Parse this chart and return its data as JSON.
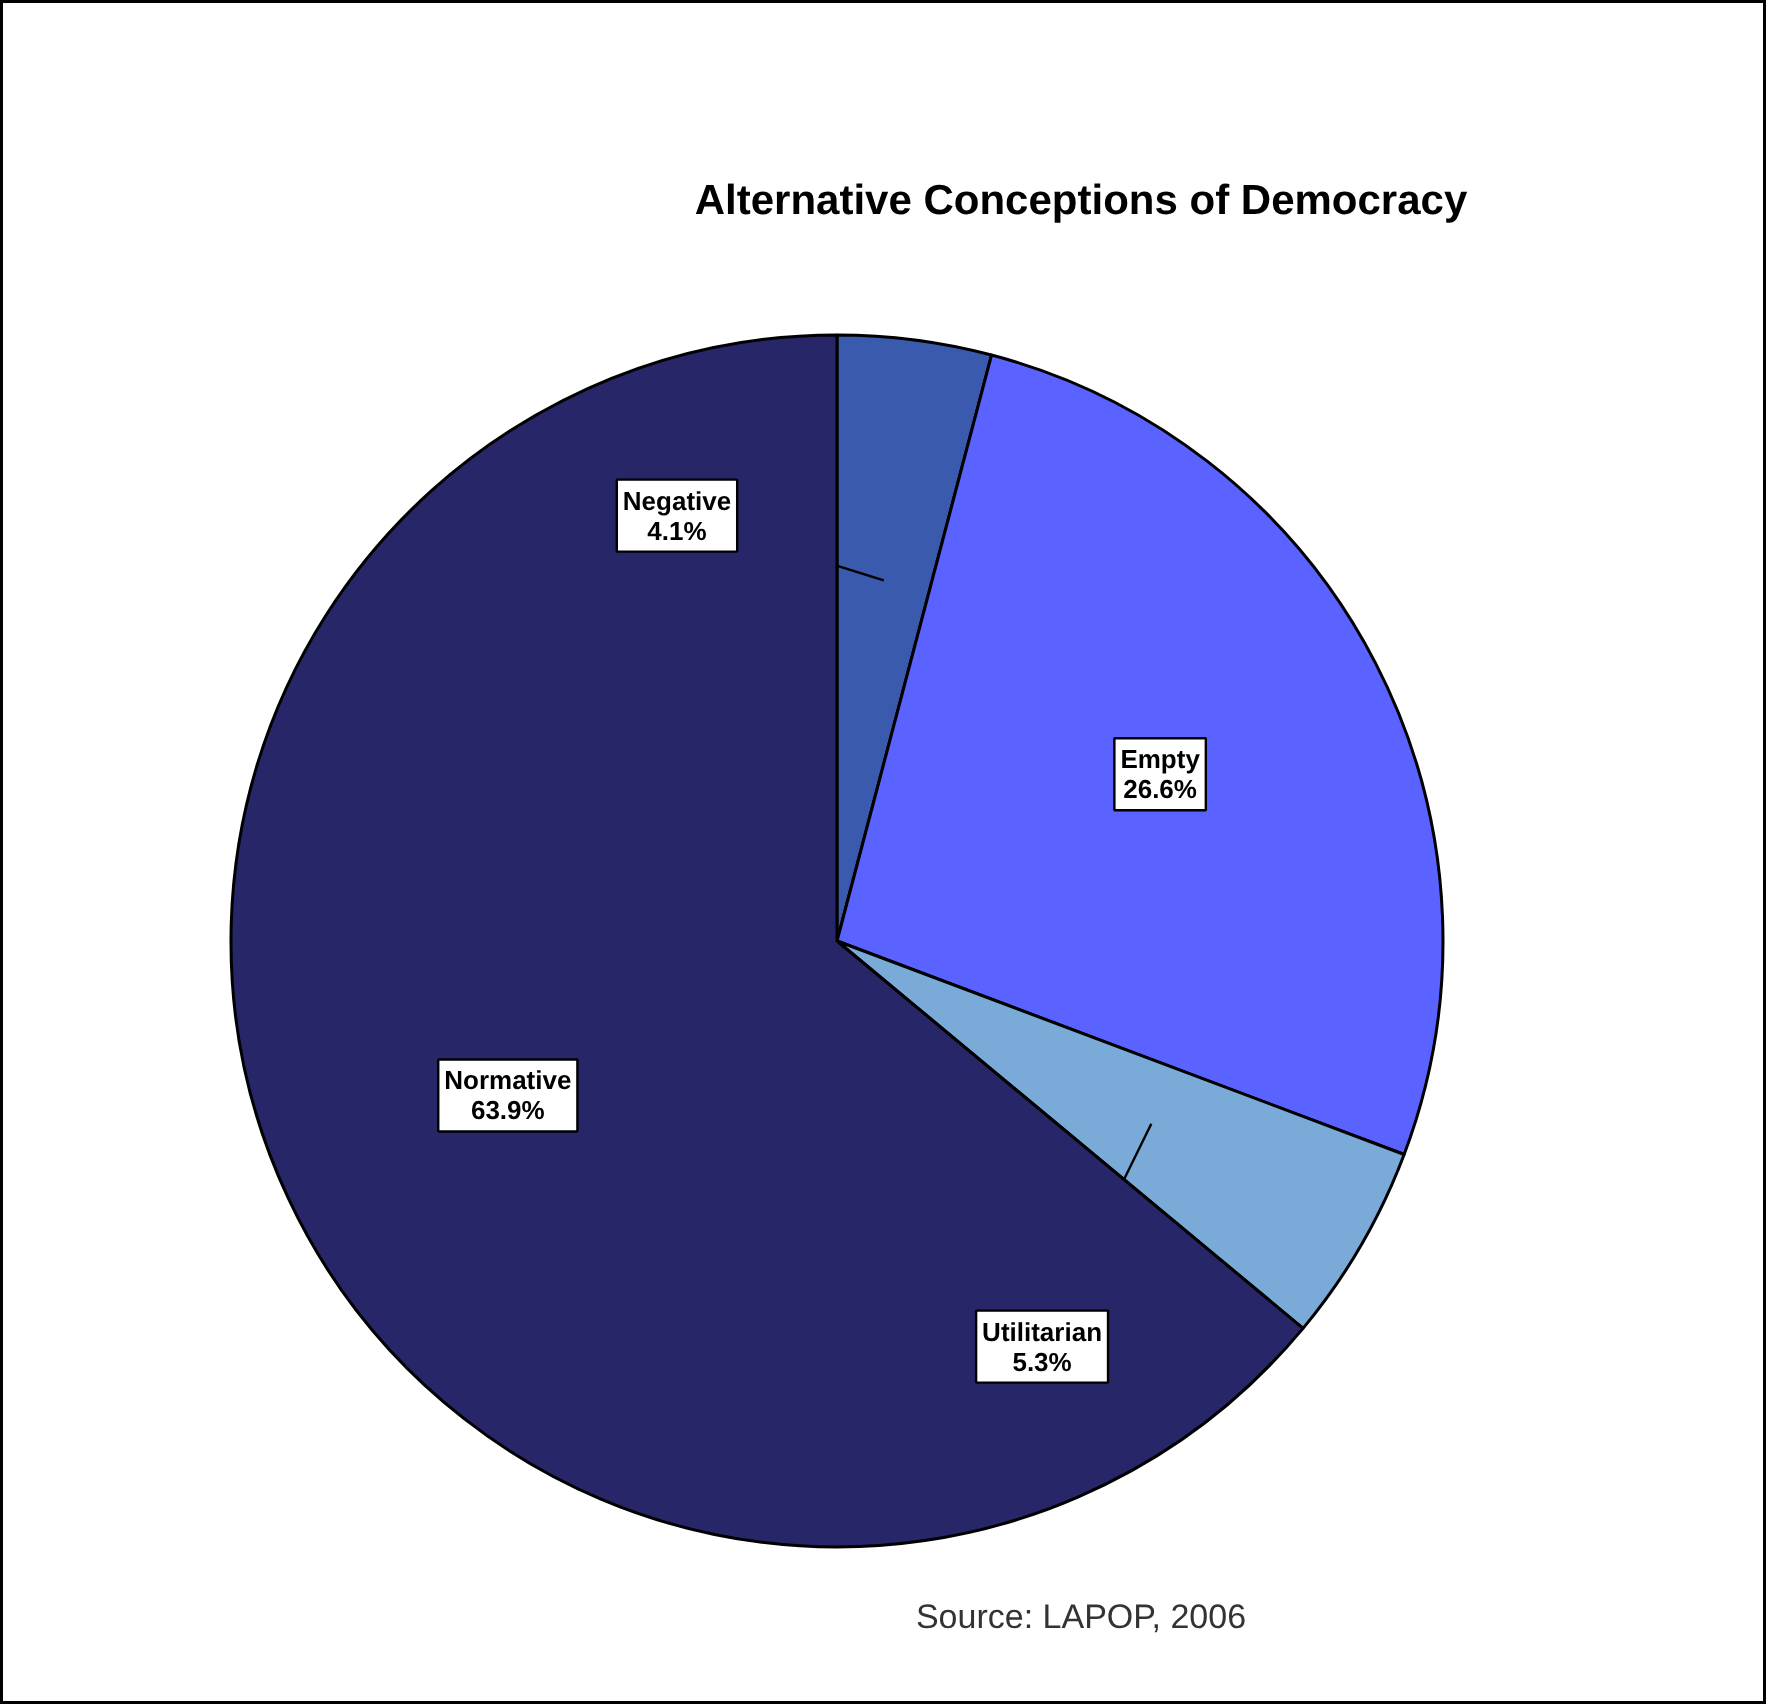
{
  "chart_data": {
    "type": "pie",
    "title": "Alternative Conceptions of Democracy",
    "categories": [
      "Negative",
      "Empty",
      "Utilitarian",
      "Normative"
    ],
    "values": [
      4.1,
      26.6,
      5.3,
      63.9
    ],
    "colors": [
      "#3a5aad",
      "#5a62ff",
      "#7aaad8",
      "#262668"
    ],
    "value_labels": [
      "4.1%",
      "26.6%",
      "5.3%",
      "63.9%"
    ],
    "annotations": [
      "Source: LAPOP, 2006"
    ]
  }
}
